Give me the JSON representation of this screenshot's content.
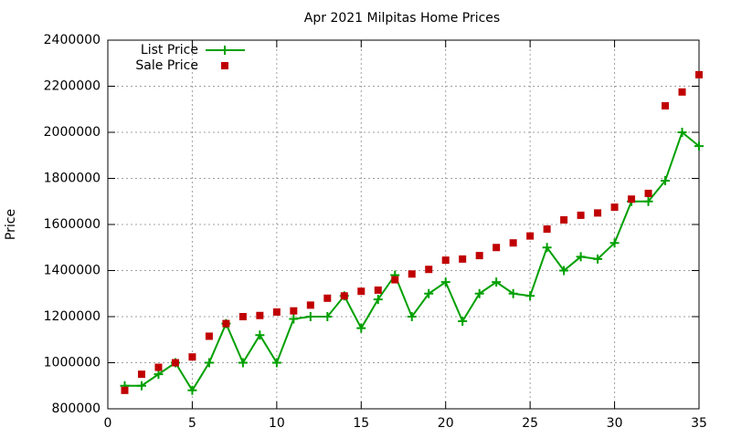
{
  "chart_data": {
    "type": "line",
    "title": "Apr 2021 Milpitas Home Prices",
    "y_label": "Price",
    "x": [
      1,
      2,
      3,
      4,
      5,
      6,
      7,
      8,
      9,
      10,
      11,
      12,
      13,
      14,
      15,
      16,
      17,
      18,
      19,
      20,
      21,
      22,
      23,
      24,
      25,
      26,
      27,
      28,
      29,
      30,
      31,
      32,
      33,
      34,
      35
    ],
    "series": [
      {
        "name": "List Price",
        "color": "#00a000",
        "style": "linespoints",
        "values": [
          900000,
          900000,
          950000,
          1000000,
          880000,
          1000000,
          1170000,
          1000000,
          1120000,
          1000000,
          1190000,
          1200000,
          1200000,
          1290000,
          1150000,
          1275000,
          1380000,
          1200000,
          1300000,
          1350000,
          1180000,
          1300000,
          1350000,
          1300000,
          1290000,
          1500000,
          1400000,
          1460000,
          1450000,
          1520000,
          1700000,
          1700000,
          1790000,
          2000000,
          1940000
        ]
      },
      {
        "name": "Sale Price",
        "color": "#c00000",
        "style": "points",
        "values": [
          880000,
          950000,
          980000,
          1000000,
          1025000,
          1115000,
          1170000,
          1200000,
          1205000,
          1220000,
          1225000,
          1250000,
          1280000,
          1290000,
          1310000,
          1315000,
          1360000,
          1385000,
          1405000,
          1445000,
          1450000,
          1465000,
          1500000,
          1520000,
          1550000,
          1580000,
          1620000,
          1640000,
          1650000,
          1675000,
          1710000,
          1735000,
          2115000,
          2175000,
          2250000
        ]
      }
    ],
    "xlim": [
      0,
      35
    ],
    "xticks": [
      0,
      5,
      10,
      15,
      20,
      25,
      30,
      35
    ],
    "ylim": [
      800000,
      2400000
    ],
    "yticks": [
      800000,
      1000000,
      1200000,
      1400000,
      1600000,
      1800000,
      2000000,
      2200000,
      2400000
    ],
    "grid": true,
    "legend": "top-left"
  }
}
